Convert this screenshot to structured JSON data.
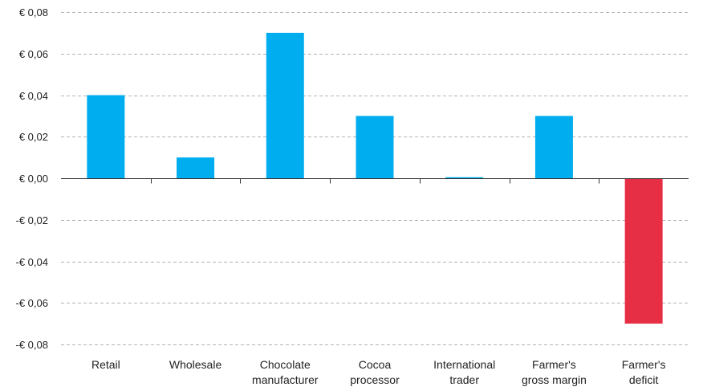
{
  "chart_data": {
    "type": "bar",
    "title": "",
    "xlabel": "",
    "ylabel": "",
    "ylim": [
      -0.08,
      0.08
    ],
    "yticks": [
      0.08,
      0.06,
      0.04,
      0.02,
      0.0,
      -0.02,
      -0.04,
      -0.06,
      -0.08
    ],
    "ytick_labels": [
      "€ 0,08",
      "€ 0,06",
      "€ 0,04",
      "€ 0,02",
      "€ 0,00",
      "-€ 0,02",
      "-€ 0,04",
      "-€ 0,06",
      "-€ 0,08"
    ],
    "grid": true,
    "categories": [
      [
        "Retail"
      ],
      [
        "Wholesale"
      ],
      [
        "Chocolate",
        "manufacturer"
      ],
      [
        "Cocoa",
        "processor"
      ],
      [
        "International",
        "trader"
      ],
      [
        "Farmer's",
        "gross margin"
      ],
      [
        "Farmer's",
        "deficit"
      ]
    ],
    "values": [
      0.04,
      0.01,
      0.07,
      0.03,
      0.0005,
      0.03,
      -0.07
    ],
    "colors": {
      "positive": "#00aeef",
      "negative": "#e62e45",
      "grid": "#b3b3b3",
      "axis": "#333333"
    }
  }
}
